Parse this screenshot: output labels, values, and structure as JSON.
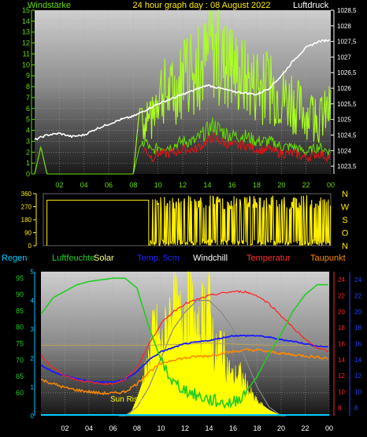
{
  "colors": {
    "wind_speed": "#66dd00",
    "wind_gust": "#aaff22",
    "pressure": "#ffffff",
    "wind_dir": "#ffee00",
    "humidity": "#22cc22",
    "solar": "#ffff00",
    "temp_5cm": "#1a1aff",
    "windchill": "#ffffff",
    "temperature": "#ff2222",
    "dewpoint": "#ff8800",
    "rain": "#00ccff",
    "uv": "#888888"
  },
  "header": {
    "left_label": "Windstärke",
    "title": "24 hour graph day : 08 August 2022",
    "right_label": "Luftdruck"
  },
  "bottom_legend": {
    "regen": "Regen",
    "luftfeuchte": "Luftfeuchte",
    "solar": "Solar",
    "temp5cm": "Temp. 5cm",
    "windchill": "Windchill",
    "temperatur": "Temperatur",
    "taupunkt": "Taupunkt"
  },
  "chart_data": [
    {
      "type": "line",
      "x_ticks": [
        "02",
        "04",
        "06",
        "08",
        "10",
        "12",
        "14",
        "16",
        "18",
        "20",
        "22",
        "00"
      ],
      "left_axis": {
        "min": 0,
        "max": 15,
        "ticks": [
          0,
          1,
          2,
          3,
          4,
          5,
          6,
          7,
          8,
          9,
          10,
          11,
          12,
          13,
          14,
          15
        ]
      },
      "right_axis": {
        "min": 1023.25,
        "max": 1028.5,
        "ticks": [
          "1023,5",
          "1024",
          "1024,5",
          "1025",
          "1025,5",
          "1026",
          "1026,5",
          "1027",
          "1027,5",
          "1028",
          "1028,5"
        ]
      },
      "series": [
        {
          "key": "pressure",
          "x": [
            0,
            1,
            2,
            3,
            4,
            5,
            6,
            7,
            8,
            9,
            10,
            11,
            12,
            13,
            14,
            15,
            16,
            17,
            18,
            19,
            20,
            21,
            22,
            23,
            24
          ],
          "y": [
            1024.35,
            1024.5,
            1024.55,
            1024.45,
            1024.5,
            1024.7,
            1024.85,
            1025.0,
            1025.1,
            1025.3,
            1025.5,
            1025.65,
            1025.8,
            1025.95,
            1026.1,
            1026.0,
            1025.9,
            1025.85,
            1025.8,
            1026.0,
            1026.4,
            1026.9,
            1027.3,
            1027.5,
            1027.55
          ]
        },
        {
          "key": "wind_speed",
          "x": [
            0,
            0.5,
            1,
            2,
            3,
            4,
            5,
            6,
            7,
            8,
            8.5,
            9,
            9.5,
            10,
            11,
            12,
            13,
            14,
            14.5,
            15,
            16,
            17,
            18,
            19,
            20,
            21,
            22,
            23,
            24
          ],
          "y": [
            0,
            2.5,
            0,
            0,
            0,
            0,
            0,
            0,
            0,
            0,
            2.5,
            3,
            2,
            2.5,
            2.5,
            3,
            3,
            4,
            4.5,
            4,
            3.5,
            3.5,
            3,
            3,
            2.5,
            2.5,
            2,
            2.5,
            2
          ]
        },
        {
          "key": "wind_gust",
          "x": [
            0,
            0.5,
            1,
            2,
            3,
            4,
            5,
            6,
            7,
            8,
            8.5,
            9,
            9.5,
            10,
            11,
            12,
            13,
            14,
            14.5,
            15,
            16,
            17,
            18,
            19,
            20,
            21,
            22,
            23,
            24
          ],
          "y": [
            0,
            2.5,
            0,
            0,
            0,
            0,
            0,
            0,
            0,
            0,
            6,
            6,
            6,
            10,
            9,
            11,
            12,
            13,
            14.5,
            13,
            12,
            11,
            10,
            10,
            9,
            8,
            7,
            6,
            7.5
          ]
        }
      ]
    },
    {
      "type": "line",
      "x_ticks": [
        "02",
        "04",
        "06",
        "08",
        "10",
        "12",
        "14",
        "16",
        "18",
        "20",
        "22",
        "00"
      ],
      "left_axis": {
        "min": 0,
        "max": 360,
        "ticks": [
          0,
          90,
          180,
          270,
          360
        ]
      },
      "right_labels": [
        "N",
        "W",
        "S",
        "O",
        "N"
      ],
      "series": [
        {
          "key": "wind_dir",
          "x": [
            0.3,
            0.3,
            8.8,
            8.8,
            9,
            24
          ],
          "y": [
            0,
            315,
            315,
            0,
            180,
            180
          ]
        }
      ]
    },
    {
      "type": "line",
      "x_ticks": [
        "02",
        "04",
        "06",
        "08",
        "10",
        "12",
        "14",
        "16",
        "18",
        "20",
        "22",
        "00"
      ],
      "humidity_axis": {
        "min": 55,
        "max": 95,
        "ticks": [
          60,
          65,
          70,
          75,
          80,
          85,
          90,
          95
        ]
      },
      "rain_axis": {
        "ticks": [
          0,
          1,
          2,
          3,
          4,
          5
        ]
      },
      "temp_axis_left": {
        "ticks": [
          8,
          10,
          12,
          14,
          16,
          18,
          20,
          22,
          24
        ]
      },
      "temp_axis_right": {
        "ticks": [
          8,
          10,
          12,
          14,
          16,
          18,
          20,
          22,
          24
        ]
      },
      "sun_label": "Sun Rise",
      "series": [
        {
          "key": "humidity",
          "x": [
            0,
            1,
            2,
            3,
            4,
            5,
            6,
            7,
            8,
            9,
            10,
            11,
            12,
            13,
            14,
            15,
            16,
            17,
            18,
            19,
            20,
            21,
            22,
            23,
            24
          ],
          "y": [
            84,
            89,
            91,
            93,
            94,
            94.5,
            95,
            95,
            92,
            80,
            70,
            63,
            61,
            59,
            58,
            57,
            57,
            60,
            65,
            72,
            78,
            85,
            90,
            93,
            93
          ]
        },
        {
          "key": "temperature",
          "x": [
            0,
            1,
            2,
            3,
            4,
            5,
            6,
            7,
            8,
            9,
            10,
            11,
            12,
            13,
            14,
            15,
            16,
            17,
            18,
            19,
            20,
            21,
            22,
            23,
            24
          ],
          "y": [
            14.5,
            13,
            12,
            11.5,
            11.2,
            11,
            11,
            11.5,
            13,
            16,
            18.5,
            20,
            21,
            21.5,
            22,
            22.3,
            22.5,
            22.5,
            22,
            21,
            19.5,
            18,
            16.5,
            15.5,
            15
          ]
        },
        {
          "key": "temp_5cm",
          "x": [
            0,
            1,
            2,
            3,
            4,
            5,
            6,
            7,
            8,
            9,
            10,
            11,
            12,
            13,
            14,
            15,
            16,
            17,
            18,
            19,
            20,
            21,
            22,
            23,
            24
          ],
          "y": [
            13.3,
            12.5,
            12,
            11.6,
            11.3,
            11.2,
            11.2,
            11.5,
            12.5,
            14,
            15,
            15.5,
            16,
            16.2,
            16.4,
            16.7,
            17,
            17,
            17,
            16.8,
            16.5,
            16.3,
            16,
            15.7,
            15.6
          ]
        },
        {
          "key": "dewpoint",
          "x": [
            0,
            1,
            2,
            3,
            4,
            5,
            6,
            7,
            8,
            9,
            10,
            11,
            12,
            13,
            14,
            15,
            16,
            17,
            18,
            19,
            20,
            21,
            22,
            23,
            24
          ],
          "y": [
            11.5,
            11,
            10.5,
            10.2,
            10,
            9.8,
            9.8,
            10,
            11,
            12.5,
            13.5,
            14,
            14.2,
            14.4,
            14.5,
            14.8,
            15,
            15.2,
            15.2,
            15,
            14.8,
            14.6,
            14.5,
            14.3,
            14.2
          ]
        },
        {
          "key": "windchill",
          "x": [
            0,
            5,
            7,
            7.5,
            9,
            11,
            13,
            14,
            15,
            17,
            19,
            21,
            24
          ],
          "y": [
            15.8,
            15.8,
            15.8,
            15.8,
            15.8,
            15.9,
            16.0,
            16.1,
            16.0,
            15.9,
            15.8,
            15.8,
            15.8
          ]
        },
        {
          "key": "solar",
          "x": [
            0,
            7,
            7.5,
            8,
            8.5,
            9,
            9.5,
            10,
            10.5,
            11,
            11.5,
            12,
            12.5,
            13,
            13.5,
            14,
            14.5,
            15,
            15.5,
            16,
            16.5,
            17,
            17.5,
            18,
            19,
            20,
            24
          ],
          "y": [
            0,
            0,
            0.1,
            0.6,
            1.2,
            2.2,
            3.5,
            2.5,
            3.4,
            4.5,
            3.6,
            4.2,
            4.3,
            2.8,
            4.0,
            4.3,
            2.2,
            2.8,
            1.9,
            1.4,
            1.6,
            1.2,
            0.8,
            0.5,
            0.2,
            0,
            0
          ]
        },
        {
          "key": "uv",
          "x": [
            0,
            7,
            8,
            9,
            10,
            11,
            12,
            13,
            14,
            15,
            16,
            17,
            18,
            19,
            20,
            24
          ],
          "y": [
            0,
            0,
            0.3,
            1,
            2,
            3,
            3.6,
            4,
            4,
            3.6,
            3,
            2,
            1,
            0.3,
            0,
            0
          ]
        }
      ]
    }
  ]
}
